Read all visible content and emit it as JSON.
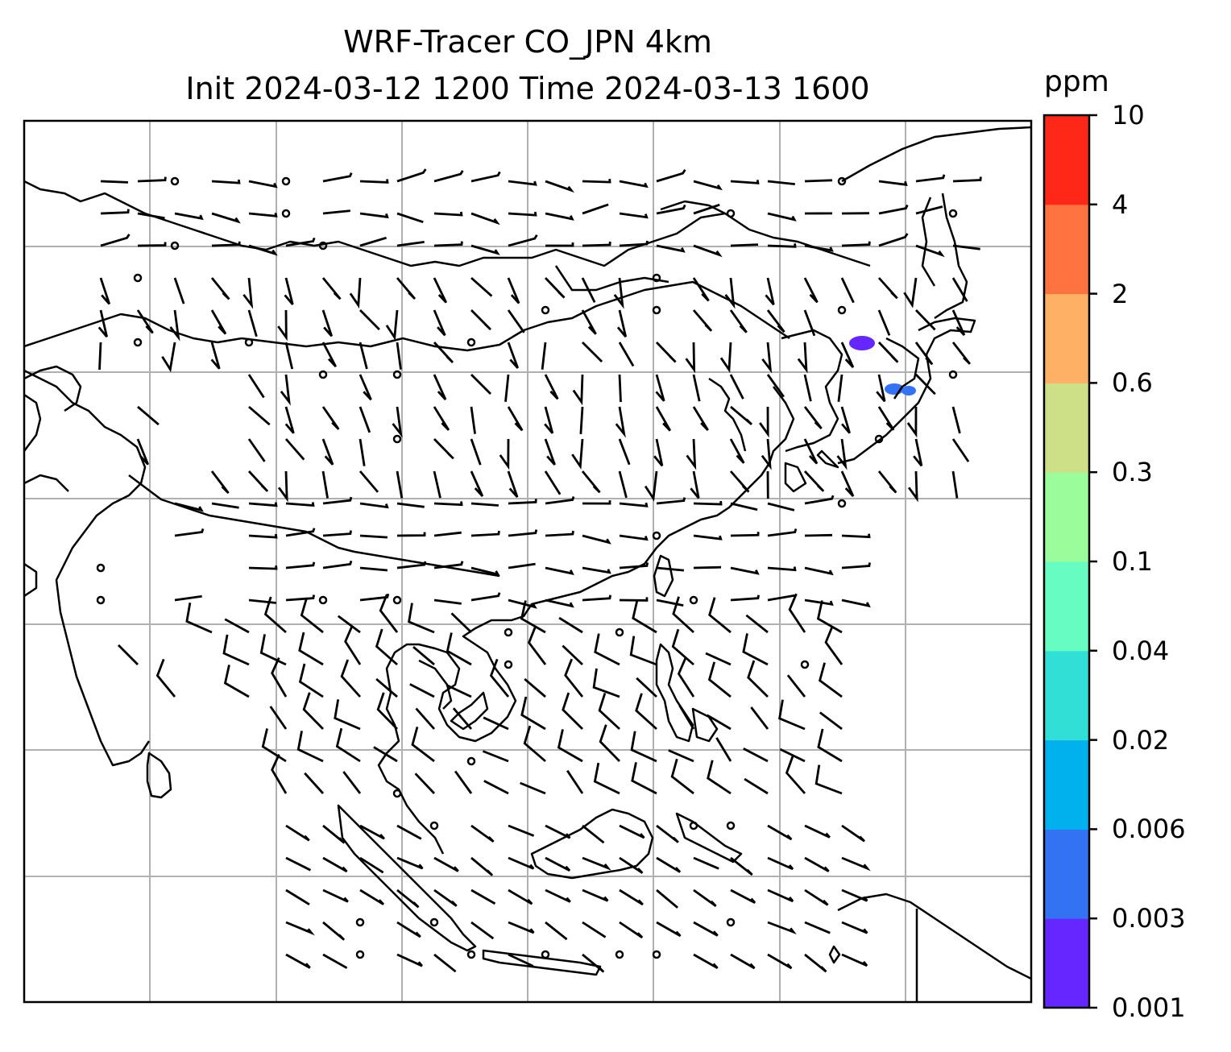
{
  "title": {
    "line1": "WRF-Tracer CO_JPN 4km",
    "line2": "Init 2024-03-12 1200 Time 2024-03-13 1600"
  },
  "colorbar": {
    "unit": "ppm",
    "levels": [
      "0.001",
      "0.003",
      "0.006",
      "0.02",
      "0.04",
      "0.1",
      "0.3",
      "0.6",
      "2",
      "4",
      "10"
    ],
    "colors": [
      "#6526ff",
      "#3372f2",
      "#01b1ee",
      "#32dfd6",
      "#67fcc2",
      "#9afc9a",
      "#cde088",
      "#feb065",
      "#ff7340",
      "#ff2718"
    ]
  },
  "map": {
    "projection": "lat-lon",
    "gridlines": true,
    "features": [
      "coastlines",
      "country-borders",
      "wind-barbs",
      "tracer-concentration"
    ],
    "tracer_blobs": [
      {
        "region": "near-hokkaido",
        "level": "0.001-0.003"
      },
      {
        "region": "northern-honshu",
        "level": "0.001-0.003"
      }
    ]
  }
}
